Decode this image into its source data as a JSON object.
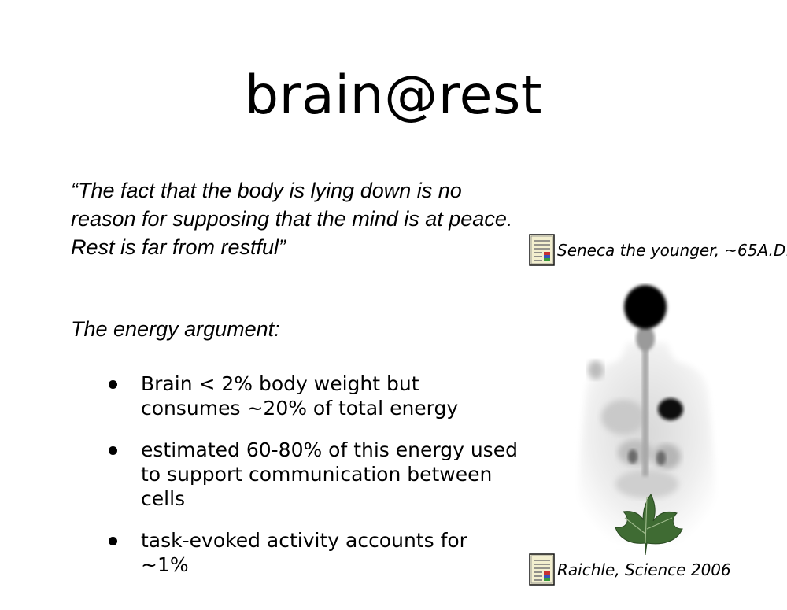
{
  "slide": {
    "title": "brain@rest",
    "quote": "“The fact that the body is lying down is no reason for supposing that the mind is at peace. Rest is far from restful”",
    "quote_citation": "Seneca the younger, ~65A.D.",
    "subheading": "The energy argument:",
    "bullets": [
      "Brain < 2% body weight but consumes ~20% of total energy",
      "estimated 60-80% of this energy used to support communication between cells",
      "task-evoked activity accounts for ~1%"
    ],
    "image_citation": "Raichle, Science 2006",
    "icons": {
      "citation": "document-icon",
      "image": "pet-scan-body-image",
      "leaf": "ivy-leaf-icon"
    },
    "colors": {
      "background": "#ffffff",
      "text": "#000000",
      "leaf": "#3f6b33",
      "doc_icon_fill": "#f3efcf"
    }
  }
}
